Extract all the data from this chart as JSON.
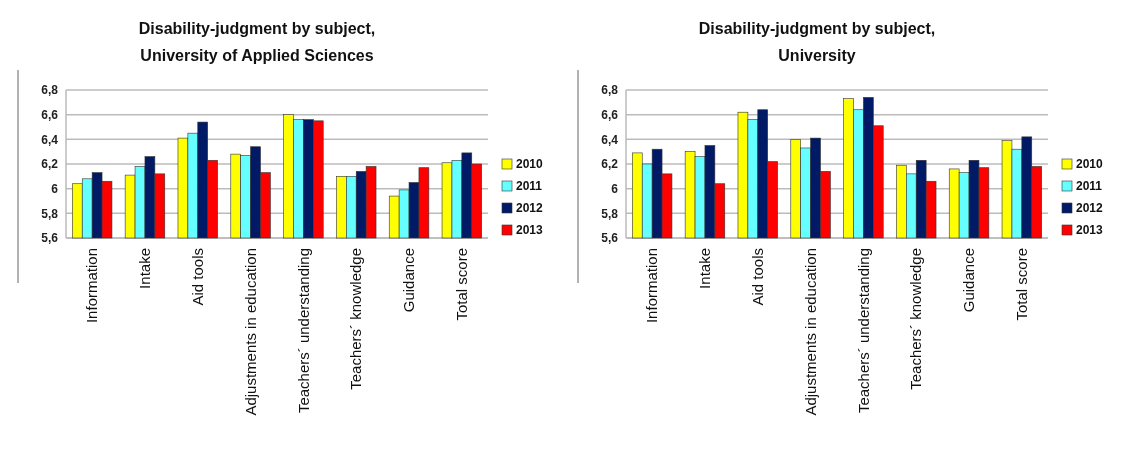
{
  "chart_data": [
    {
      "type": "bar",
      "title": "Disability-judgment by subject,\nUniversity of Applied Sciences",
      "categories": [
        "Information",
        "Intake",
        "Aid tools",
        "Adjustments in education",
        "Teachers´ understanding",
        "Teachers´ knowledge",
        "Guidance",
        "Total score"
      ],
      "series": [
        {
          "name": "2010",
          "color": "#ffff00",
          "values": [
            6.04,
            6.11,
            6.41,
            6.28,
            6.6,
            6.1,
            5.94,
            6.21
          ]
        },
        {
          "name": "2011",
          "color": "#66ffff",
          "values": [
            6.08,
            6.18,
            6.45,
            6.27,
            6.56,
            6.1,
            5.99,
            6.23
          ]
        },
        {
          "name": "2012",
          "color": "#001a66",
          "values": [
            6.13,
            6.26,
            6.54,
            6.34,
            6.56,
            6.14,
            6.05,
            6.29
          ]
        },
        {
          "name": "2013",
          "color": "#ff0000",
          "values": [
            6.06,
            6.12,
            6.23,
            6.13,
            6.55,
            6.18,
            6.17,
            6.2
          ]
        }
      ],
      "ylim": [
        5.6,
        6.8
      ],
      "yticks": [
        {
          "value": 5.6,
          "label": "5,6"
        },
        {
          "value": 5.8,
          "label": "5,8"
        },
        6,
        {
          "value": 6.2,
          "label": "6,2"
        },
        {
          "value": 6.4,
          "label": "6,4"
        },
        {
          "value": 6.6,
          "label": "6,6"
        },
        {
          "value": 6.8,
          "label": "6,8"
        }
      ],
      "grid": "y",
      "legend": "right"
    },
    {
      "type": "bar",
      "title": "Disability-judgment by subject,\nUniversity",
      "categories": [
        "Information",
        "Intake",
        "Aid tools",
        "Adjustments in education",
        "Teachers´ understanding",
        "Teachers´ knowledge",
        "Guidance",
        "Total score"
      ],
      "series": [
        {
          "name": "2010",
          "color": "#ffff00",
          "values": [
            6.29,
            6.3,
            6.62,
            6.4,
            6.73,
            6.19,
            6.16,
            6.39
          ]
        },
        {
          "name": "2011",
          "color": "#66ffff",
          "values": [
            6.2,
            6.26,
            6.56,
            6.33,
            6.64,
            6.12,
            6.13,
            6.32
          ]
        },
        {
          "name": "2012",
          "color": "#001a66",
          "values": [
            6.32,
            6.35,
            6.64,
            6.41,
            6.74,
            6.23,
            6.23,
            6.42
          ]
        },
        {
          "name": "2013",
          "color": "#ff0000",
          "values": [
            6.12,
            6.04,
            6.22,
            6.14,
            6.51,
            6.06,
            6.17,
            6.18
          ]
        }
      ],
      "ylim": [
        5.6,
        6.8
      ],
      "yticks": [
        {
          "value": 5.6,
          "label": "5,6"
        },
        {
          "value": 5.8,
          "label": "5,8"
        },
        6,
        {
          "value": 6.2,
          "label": "6,2"
        },
        {
          "value": 6.4,
          "label": "6,4"
        },
        {
          "value": 6.6,
          "label": "6,6"
        },
        {
          "value": 6.8,
          "label": "6,8"
        }
      ],
      "grid": "y",
      "legend": "right"
    }
  ]
}
